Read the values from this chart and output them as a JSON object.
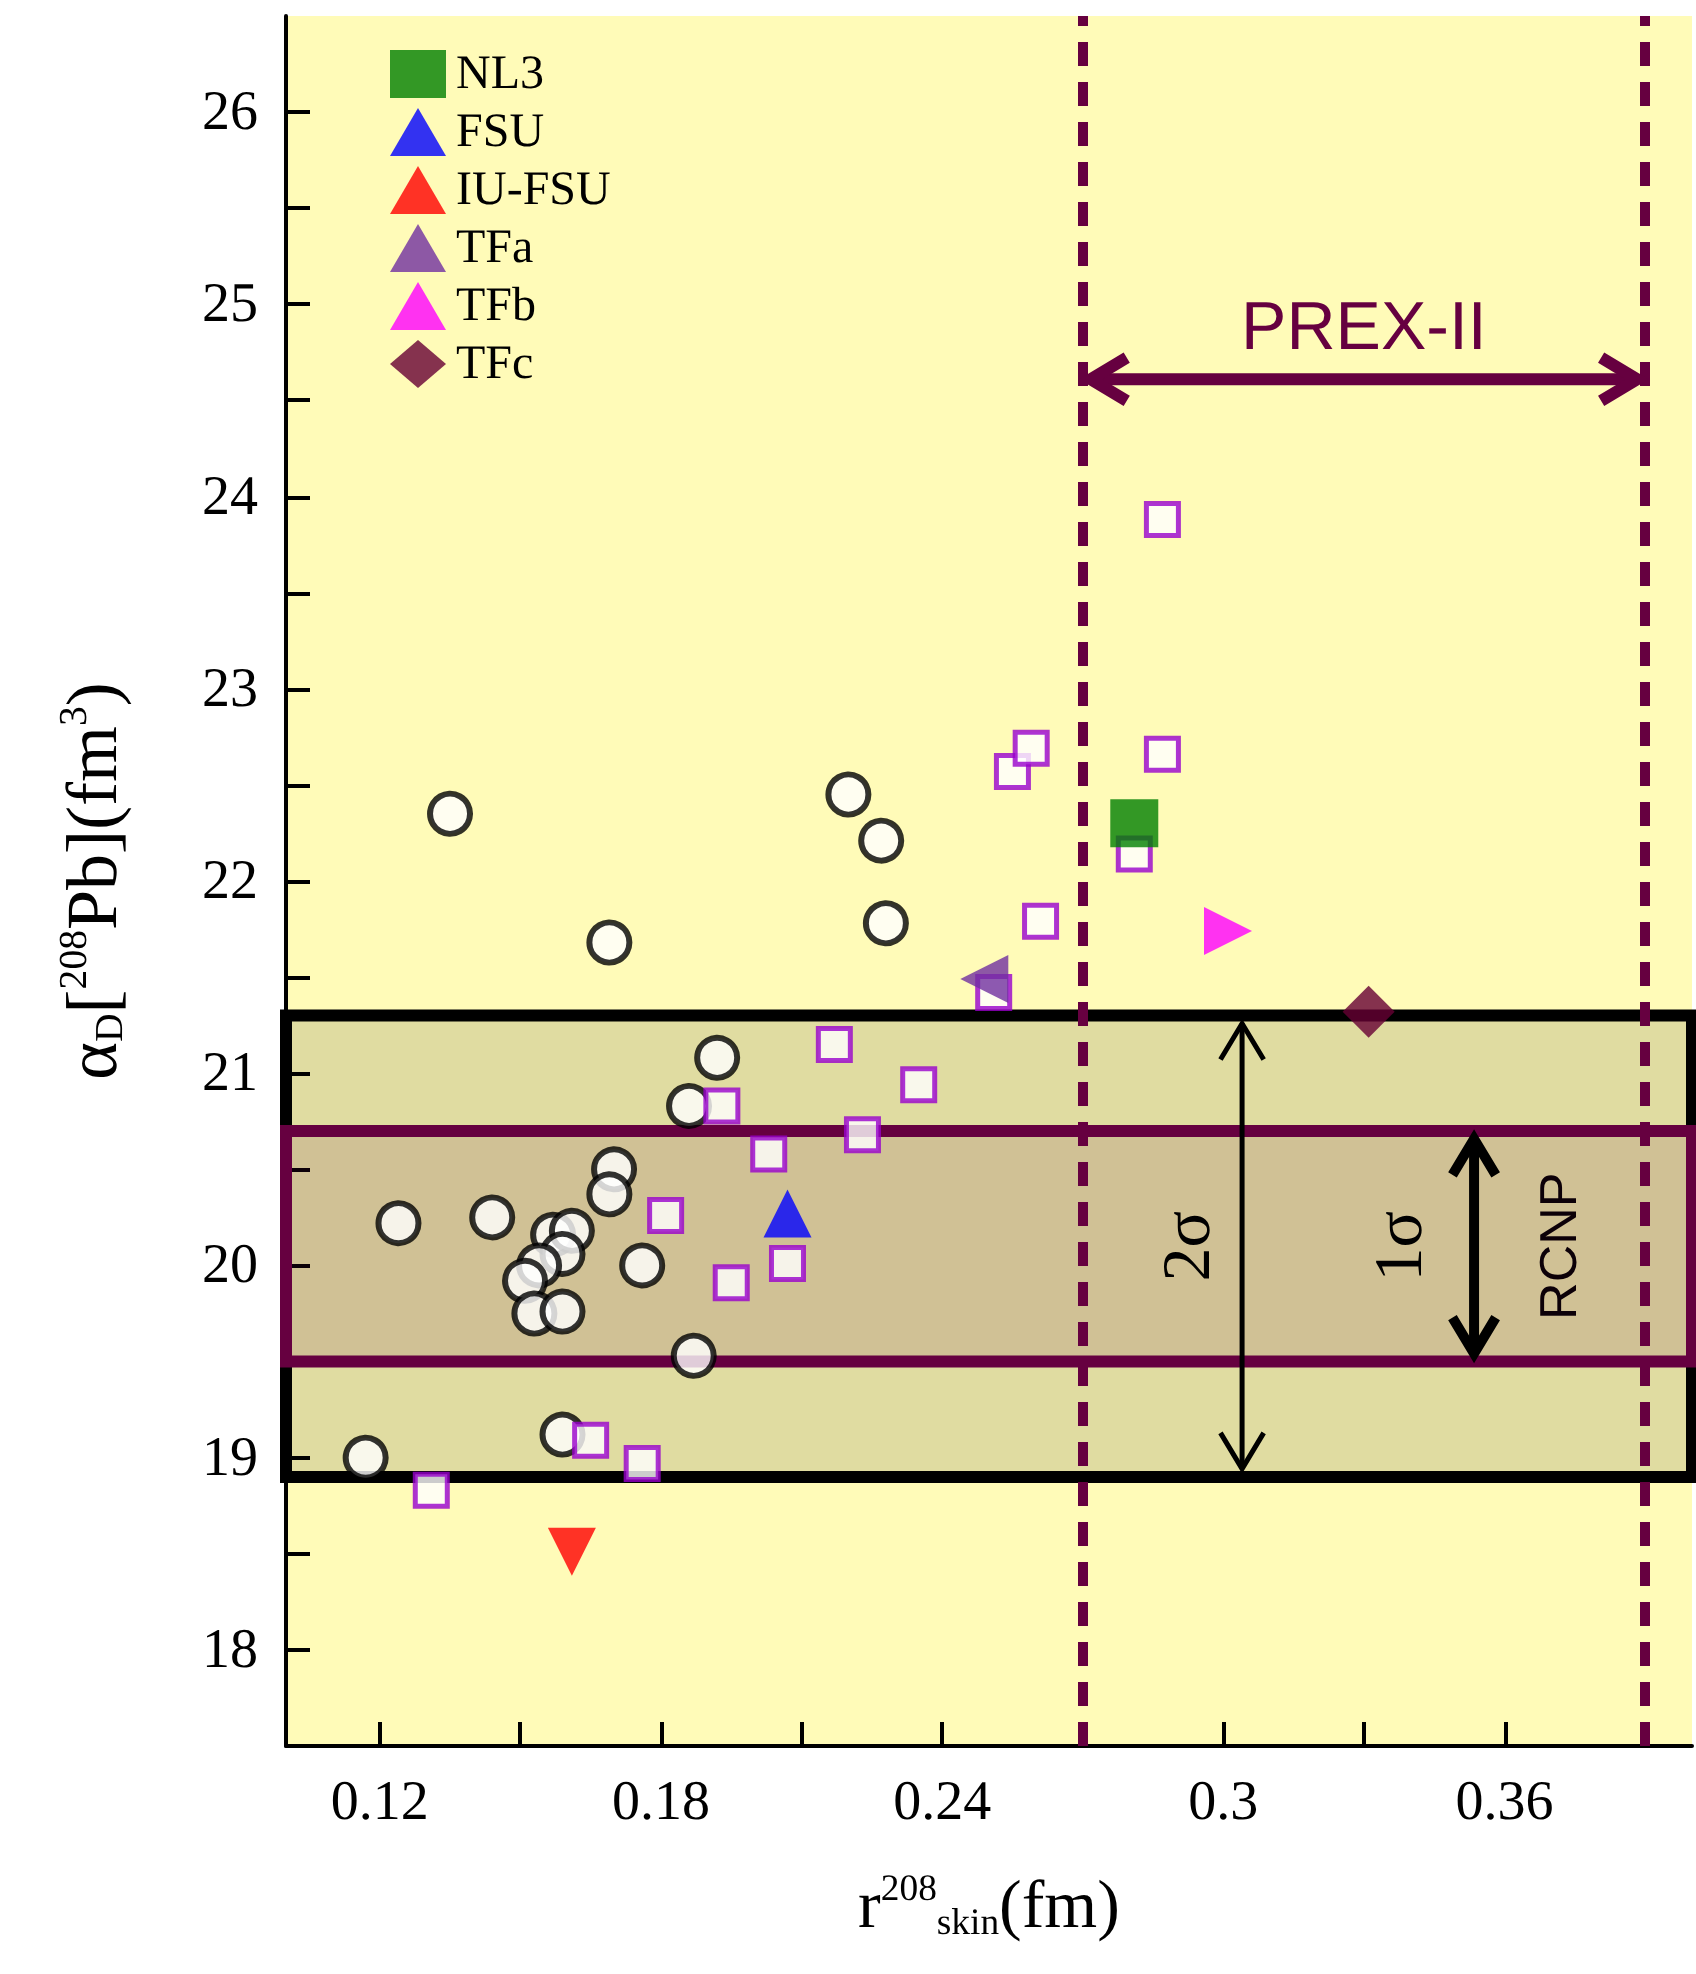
{
  "chart_data": {
    "type": "scatter",
    "xlabel": "r$^{208}$$_{skin}$(fm)",
    "ylabel": "α$_{D}$[$^{208}$Pb](fm$^{3}$)",
    "xlim": [
      0.1,
      0.4
    ],
    "xticks": [
      0.12,
      {
        "value": 0.15,
        "label": null
      },
      0.18,
      {
        "value": 0.21,
        "label": null
      },
      0.24,
      {
        "value": 0.27,
        "label": null
      },
      0.3,
      {
        "value": 0.33,
        "label": null
      },
      0.36,
      {
        "value": 0.39,
        "label": null
      }
    ],
    "ylim": [
      17.5,
      26.5
    ],
    "yticks": [
      18,
      {
        "value": 18.5,
        "label": null
      },
      19,
      {
        "value": 19.5,
        "label": null
      },
      20,
      {
        "value": 20.5,
        "label": null
      },
      21,
      {
        "value": 21.5,
        "label": null
      },
      22,
      {
        "value": 22.5,
        "label": null
      },
      23,
      {
        "value": 23.5,
        "label": null
      },
      24,
      {
        "value": 24.5,
        "label": null
      },
      25,
      {
        "value": 25.5,
        "label": null
      },
      26
    ],
    "grid": false,
    "legend": "top left",
    "series": [
      {
        "color": "#000000",
        "marker": "circle",
        "x": [
          0.135,
          0.169,
          0.22,
          0.227,
          0.228,
          0.192,
          0.186,
          0.17,
          0.169,
          0.124,
          0.144,
          0.157,
          0.161,
          0.159,
          0.154,
          0.151,
          0.176,
          0.153,
          0.159,
          0.187,
          0.159,
          0.117
        ],
        "values": [
          22.35,
          21.68,
          22.45,
          22.21,
          21.78,
          21.08,
          20.83,
          20.5,
          20.37,
          20.22,
          20.25,
          20.16,
          20.18,
          20.06,
          20.0,
          19.92,
          20.0,
          19.75,
          19.76,
          19.53,
          19.12,
          19.0
        ]
      },
      {
        "color": "#9900cc",
        "marker": "square",
        "x": [
          0.255,
          0.259,
          0.261,
          0.251,
          0.217,
          0.235,
          0.193,
          0.223,
          0.203,
          0.181,
          0.207,
          0.195,
          0.165,
          0.176,
          0.131,
          0.287,
          0.287,
          0.281
        ],
        "values": [
          22.57,
          22.69,
          21.79,
          21.42,
          21.15,
          20.94,
          20.83,
          20.68,
          20.58,
          20.26,
          20.01,
          19.91,
          19.09,
          18.97,
          18.83,
          23.88,
          22.66,
          22.14
        ]
      },
      {
        "name": "NL3",
        "color": "#008000",
        "marker": "square",
        "x": [
          0.281
        ],
        "values": [
          22.3
        ]
      },
      {
        "name": "FSU",
        "color": "#0000ff",
        "marker": "triangle",
        "x": [
          0.207
        ],
        "values": [
          20.27
        ]
      },
      {
        "name": "IU-FSU",
        "color": "#ff0000",
        "marker": "triangle-down",
        "x": [
          0.161
        ],
        "values": [
          18.51
        ]
      },
      {
        "name": "TFa",
        "color": "#7030a0",
        "marker": "triangle-left",
        "x": [
          0.249
        ],
        "values": [
          21.49
        ]
      },
      {
        "name": "TFb",
        "color": "#ff00ff",
        "marker": "triangle-right",
        "x": [
          0.301
        ],
        "values": [
          21.74
        ]
      },
      {
        "name": "TFc",
        "color": "#660033",
        "marker": "diamond",
        "x": [
          0.331
        ],
        "values": [
          21.32
        ]
      }
    ],
    "ref_lines": [
      {
        "axis": "x",
        "value": 0.27,
        "color": "#660040",
        "line_style": "dashed"
      },
      {
        "axis": "x",
        "value": 0.39,
        "color": "#660040",
        "line_style": "dashed"
      }
    ],
    "bands": [
      {
        "axis": "y",
        "from": 18.9,
        "to": 21.3,
        "label": "2σ",
        "color": "#000000"
      },
      {
        "axis": "y",
        "from": 19.5,
        "to": 20.7,
        "label": "1σ",
        "color": "#660040"
      }
    ],
    "annotations": [
      "PREX-II",
      "RCNP"
    ]
  }
}
